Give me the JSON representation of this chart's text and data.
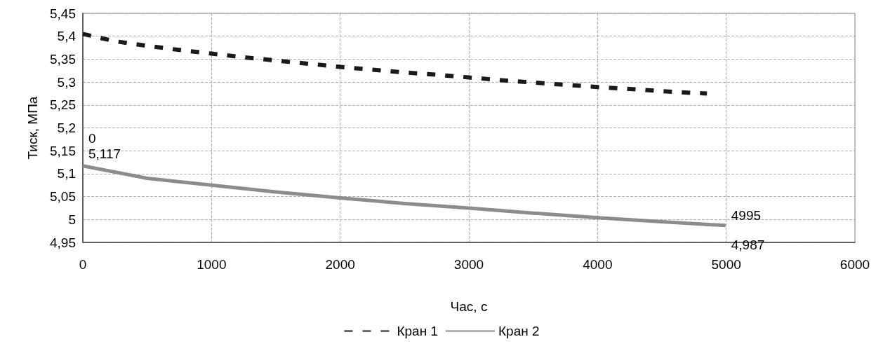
{
  "chart_data": {
    "type": "line",
    "xlabel": "Час, с",
    "ylabel": "Тиск, МПа",
    "xlim": [
      0,
      6000
    ],
    "xticks": [
      0,
      1000,
      2000,
      3000,
      4000,
      5000,
      6000
    ],
    "ylim": [
      4.95,
      5.45
    ],
    "yticks": [
      {
        "value": 4.95,
        "label": "4,95"
      },
      {
        "value": 5,
        "label": "5"
      },
      {
        "value": 5.05,
        "label": "5,05"
      },
      {
        "value": 5.1,
        "label": "5,1"
      },
      {
        "value": 5.15,
        "label": "5,15"
      },
      {
        "value": 5.2,
        "label": "5,2"
      },
      {
        "value": 5.25,
        "label": "5,25"
      },
      {
        "value": 5.3,
        "label": "5,3"
      },
      {
        "value": 5.35,
        "label": "5,35"
      },
      {
        "value": 5.4,
        "label": "5,4"
      },
      {
        "value": 5.45,
        "label": "5,45"
      }
    ],
    "grid": true,
    "legend": "bottom",
    "marker": "none",
    "series": [
      {
        "name": "Кран 1",
        "color": "#1a1a1a",
        "line_style": "dashed",
        "x": [
          0,
          250,
          500,
          750,
          1000,
          1250,
          1500,
          1750,
          2000,
          2250,
          2500,
          2750,
          3000,
          3250,
          3500,
          3750,
          4000,
          4250,
          4500,
          4750,
          4850
        ],
        "values": [
          5.405,
          5.389,
          5.379,
          5.37,
          5.362,
          5.354,
          5.347,
          5.34,
          5.333,
          5.327,
          5.321,
          5.316,
          5.31,
          5.304,
          5.299,
          5.294,
          5.289,
          5.285,
          5.28,
          5.276,
          5.275
        ]
      },
      {
        "name": "Кран 2",
        "color": "#8c8c8c",
        "line_style": "solid",
        "x": [
          0,
          500,
          1000,
          1500,
          2000,
          2500,
          3000,
          3500,
          4000,
          4500,
          4995
        ],
        "values": [
          5.117,
          5.09,
          5.075,
          5.06,
          5.047,
          5.035,
          5.025,
          5.014,
          5.004,
          4.995,
          4.987
        ]
      }
    ],
    "annotations": [
      {
        "text": "0\n5,117",
        "x": 0,
        "y": 5.117
      },
      {
        "text": "4995\n4,987",
        "x": 4995,
        "y": 4.987
      }
    ]
  }
}
